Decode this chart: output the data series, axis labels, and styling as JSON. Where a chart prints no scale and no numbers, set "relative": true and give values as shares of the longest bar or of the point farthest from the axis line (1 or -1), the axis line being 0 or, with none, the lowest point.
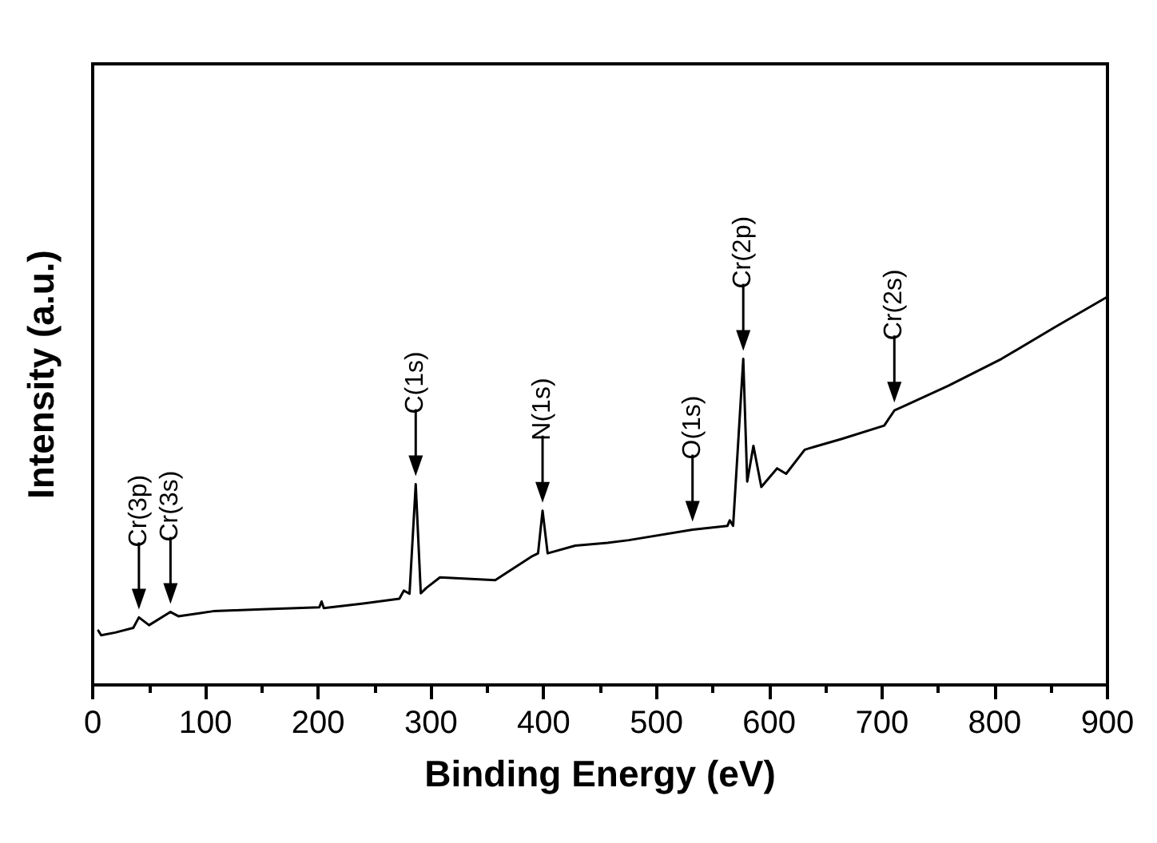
{
  "chart_data": {
    "type": "line",
    "relative": true,
    "xlabel": "Binding Energy (eV)",
    "ylabel": "Intensity (a.u.)",
    "xlim": [
      0,
      900
    ],
    "xticks": [
      0,
      100,
      200,
      300,
      400,
      500,
      600,
      700,
      800,
      900
    ],
    "grid": false,
    "line_style": "solid",
    "series": [
      {
        "color": "#000000",
        "x": [
          5,
          7.5,
          20,
          36,
          41,
          50,
          69,
          76,
          107,
          150,
          201,
          203,
          205,
          240,
          272,
          276,
          281,
          286.5,
          291,
          296,
          308,
          357,
          390,
          395,
          399,
          403.5,
          428,
          456.6,
          475.5,
          532,
          563,
          565,
          568,
          577,
          580.5,
          586,
          593,
          607,
          615,
          631.5,
          636,
          664.5,
          702,
          711,
          759,
          806,
          853.5,
          900
        ],
        "values": [
          0.14,
          0.128,
          0.135,
          0.147,
          0.174,
          0.154,
          0.188,
          0.177,
          0.19,
          0.195,
          0.2,
          0.215,
          0.198,
          0.21,
          0.222,
          0.243,
          0.235,
          0.517,
          0.236,
          0.25,
          0.277,
          0.27,
          0.332,
          0.339,
          0.449,
          0.339,
          0.359,
          0.366,
          0.373,
          0.4,
          0.41,
          0.424,
          0.41,
          0.84,
          0.524,
          0.616,
          0.51,
          0.558,
          0.544,
          0.606,
          0.61,
          0.634,
          0.668,
          0.707,
          0.771,
          0.84,
          0.922,
          1.0
        ]
      }
    ],
    "annotations": [
      {
        "text": "Cr(3p)",
        "x": 41,
        "y": 0.174
      },
      {
        "text": "Cr(3s)",
        "x": 69,
        "y": 0.188
      },
      {
        "text": "C(1s)",
        "x": 286.5,
        "y": 0.517
      },
      {
        "text": "N(1s)",
        "x": 399,
        "y": 0.449
      },
      {
        "text": "O(1s)",
        "x": 532,
        "y": 0.4
      },
      {
        "text": "Cr(2p)",
        "x": 577,
        "y": 0.84
      },
      {
        "text": "Cr(2s)",
        "x": 711,
        "y": 0.707
      }
    ]
  }
}
